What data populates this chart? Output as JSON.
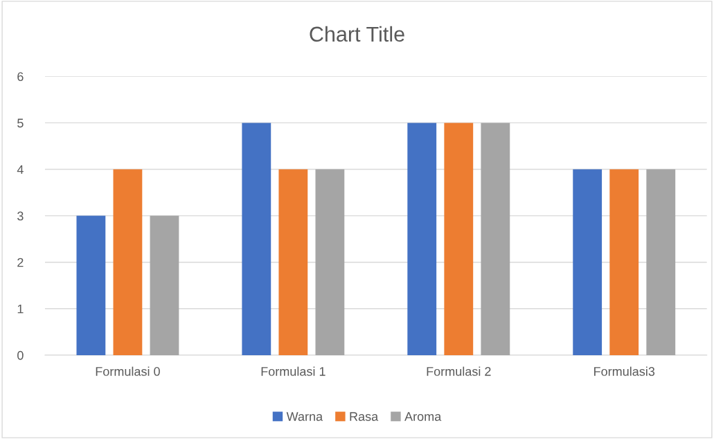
{
  "chart_data": {
    "type": "bar",
    "title": "Chart Title",
    "categories": [
      "Formulasi 0",
      "Formulasi 1",
      "Formulasi 2",
      "Formulasi3"
    ],
    "series": [
      {
        "name": "Warna",
        "color": "#4472c4",
        "values": [
          3,
          5,
          5,
          4
        ]
      },
      {
        "name": "Rasa",
        "color": "#ed7d31",
        "values": [
          4,
          4,
          5,
          4
        ]
      },
      {
        "name": "Aroma",
        "color": "#a5a5a5",
        "values": [
          3,
          4,
          5,
          4
        ]
      }
    ],
    "ylim": [
      0,
      6
    ],
    "yticks": [
      0,
      1,
      2,
      3,
      4,
      5,
      6
    ],
    "grid": "y",
    "legend": "bottom"
  }
}
